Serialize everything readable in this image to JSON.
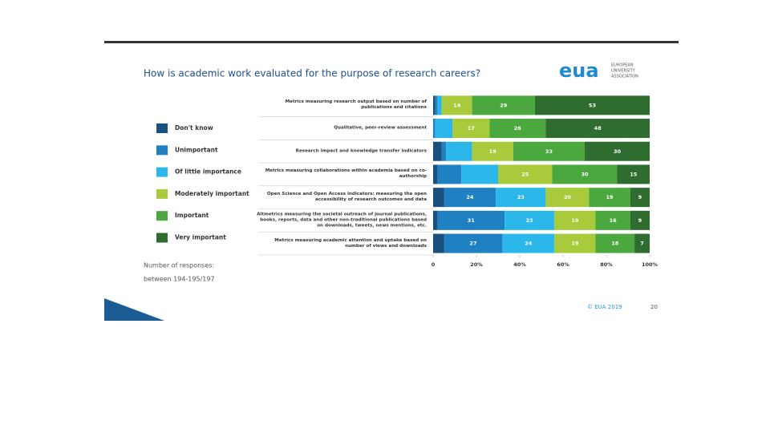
{
  "chart_data": {
    "type": "stacked_barh",
    "title": "How is academic work evaluated for the purpose of research careers?",
    "categories": [
      "Metrics measuring research output based on number of publications and citations",
      "Qualitative, peer-review assessment",
      "Research impact and knowledge transfer indicators",
      "Metrics measuring collaborations within academia based on co-authorship",
      "Open Science and Open Access indicators: measuring the open accessibility of research outcomes and data",
      "Altmetrics measuring the societal outreach of journal publications, books, reports, data and other non-traditional publications based on downloads, tweets, news mentions, etc.",
      "Metrics measuring academic attention and uptake based on number of views and downloads"
    ],
    "series": [
      {
        "name": "Don't know",
        "color": "#1b4f7c",
        "values": [
          1,
          0,
          4,
          2,
          5,
          2,
          5
        ],
        "value_labels": [
          null,
          null,
          null,
          null,
          null,
          null,
          null
        ]
      },
      {
        "name": "Unimportant",
        "color": "#1f80c2",
        "values": [
          1,
          1,
          2,
          11,
          24,
          31,
          27
        ],
        "value_labels": [
          null,
          null,
          null,
          null,
          "24",
          "31",
          "27"
        ]
      },
      {
        "name": "Of little importance",
        "color": "#2bb7ea",
        "values": [
          2,
          8,
          12,
          17,
          23,
          23,
          24
        ],
        "value_labels": [
          null,
          null,
          null,
          null,
          "23",
          "23",
          "24"
        ]
      },
      {
        "name": "Moderately important",
        "color": "#a8ca3b",
        "values": [
          14,
          17,
          19,
          25,
          20,
          19,
          19
        ],
        "value_labels": [
          "14",
          "17",
          "19",
          "25",
          "20",
          "19",
          "19"
        ]
      },
      {
        "name": "Important",
        "color": "#4ba83f",
        "values": [
          29,
          26,
          33,
          30,
          19,
          16,
          18
        ],
        "value_labels": [
          "29",
          "26",
          "33",
          "30",
          "19",
          "16",
          "18"
        ]
      },
      {
        "name": "Very important",
        "color": "#2f6c2f",
        "values": [
          53,
          48,
          30,
          15,
          9,
          9,
          7
        ],
        "value_labels": [
          "53",
          "48",
          "30",
          "15",
          "9",
          "9",
          "7"
        ]
      }
    ],
    "xlim": [
      0,
      100
    ],
    "xticks": [
      0,
      {
        "value": 20,
        "label": "20%"
      },
      {
        "value": 40,
        "label": "40%"
      },
      {
        "value": 60,
        "label": "60%"
      },
      {
        "value": 80,
        "label": "80%"
      },
      {
        "value": 100,
        "label": "100%"
      }
    ],
    "note": [
      "Number of responses:",
      "between 194-195/197"
    ]
  },
  "logo": {
    "mark": "eua",
    "name": [
      "EUROPEAN",
      "UNIVERSITY",
      "ASSOCIATION"
    ]
  },
  "footer": {
    "copyright": "© EUA 2019",
    "page": "20"
  }
}
